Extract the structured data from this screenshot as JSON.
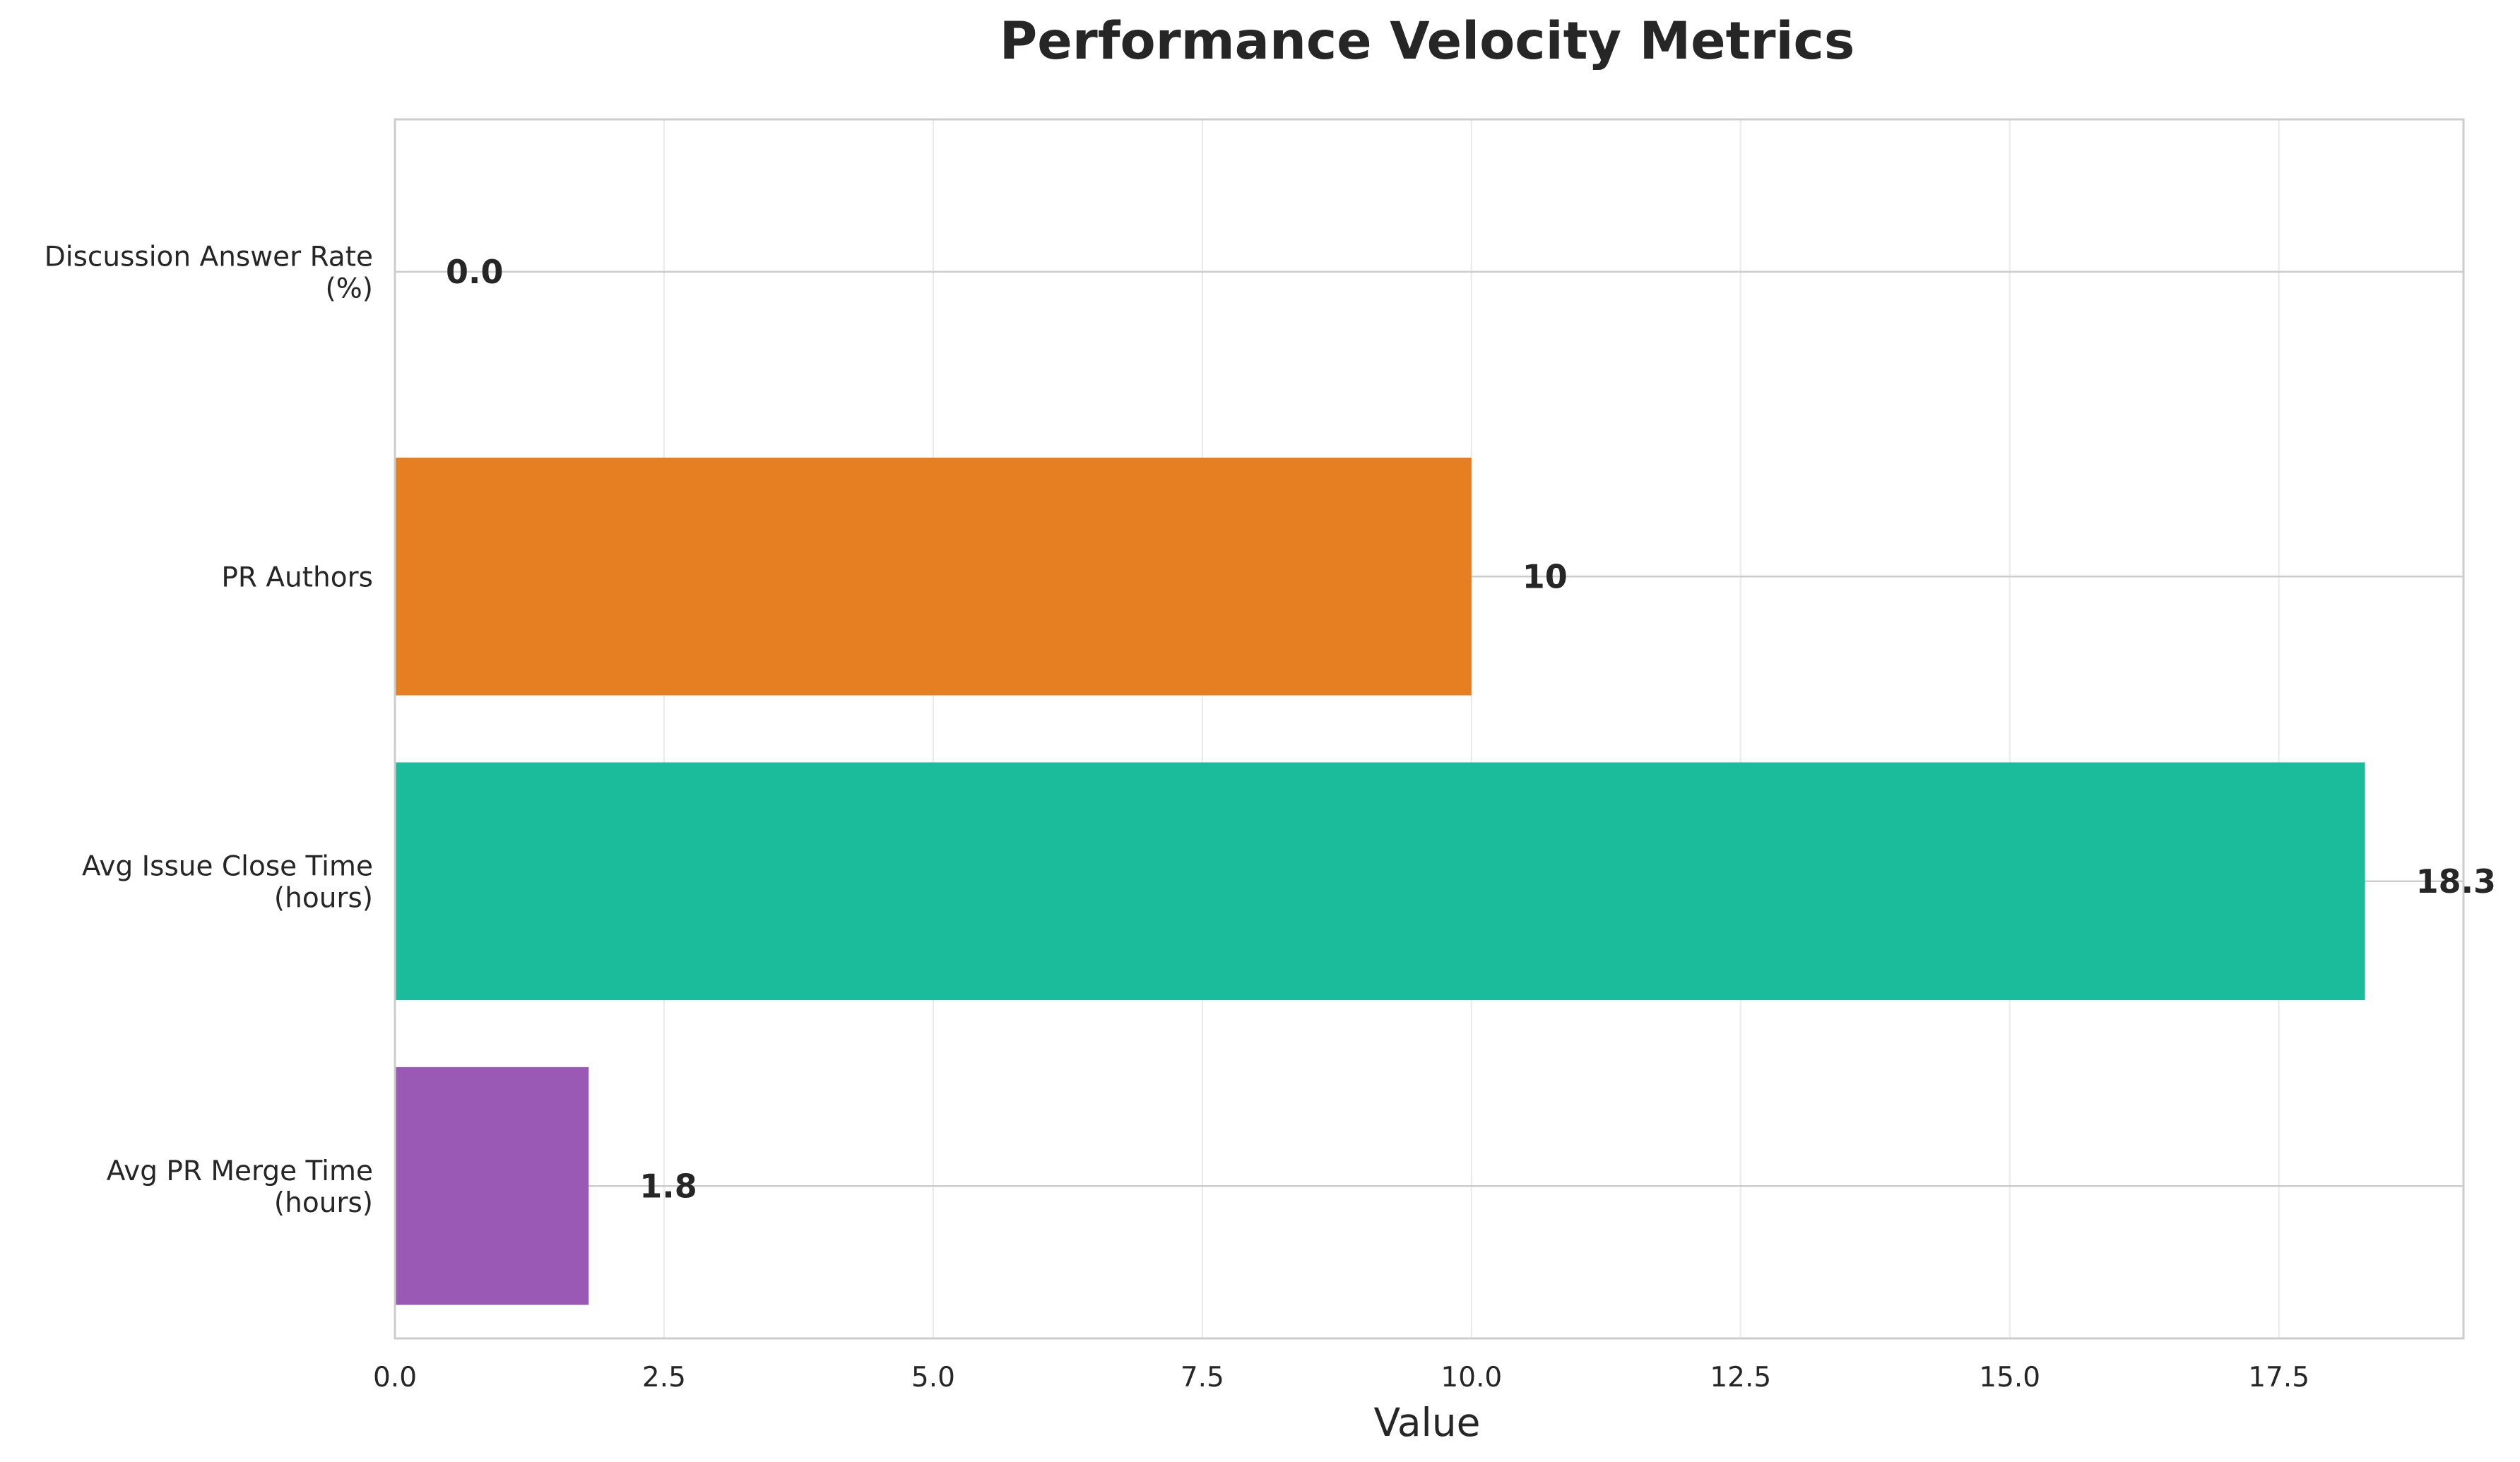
{
  "chart_data": {
    "type": "bar",
    "orientation": "horizontal",
    "title": "Performance Velocity Metrics",
    "xlabel": "Value",
    "ylabel": "",
    "xlim": [
      0,
      19.215
    ],
    "xticks": [
      0.0,
      2.5,
      5.0,
      7.5,
      10.0,
      12.5,
      15.0,
      17.5
    ],
    "xtick_labels": [
      "0.0",
      "2.5",
      "5.0",
      "7.5",
      "10.0",
      "12.5",
      "15.0",
      "17.5"
    ],
    "grid": true,
    "categories": [
      [
        "Discussion Answer Rate",
        "(%)"
      ],
      [
        "PR Authors"
      ],
      [
        "Avg Issue Close Time",
        "(hours)"
      ],
      [
        "Avg PR Merge Time",
        "(hours)"
      ]
    ],
    "values": [
      0.0,
      10,
      18.3,
      1.8
    ],
    "value_labels": [
      "0.0",
      "10",
      "18.3",
      "1.8"
    ],
    "colors": [
      "#3498db",
      "#e67e22",
      "#1abc9c",
      "#9b59b6"
    ]
  }
}
